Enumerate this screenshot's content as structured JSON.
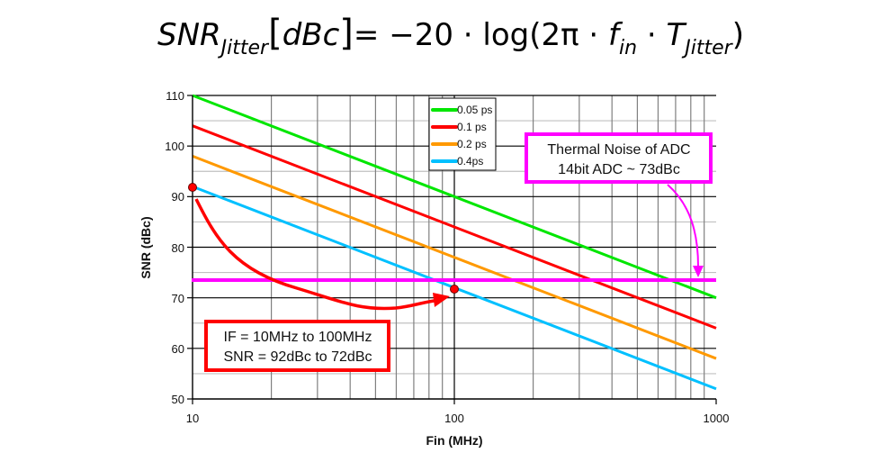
{
  "formula": {
    "lhs_main": "SNR",
    "lhs_sub": "Jitter",
    "lhs_unit": "dBc",
    "rhs_prefix": "= −20 · log(2π · ",
    "f": "f",
    "f_sub": "in",
    "mid": " · ",
    "t": "T",
    "t_sub": "Jitter",
    "rhs_suffix": ")"
  },
  "colors": {
    "green": "#00e600",
    "red": "#ff0000",
    "orange": "#ff9900",
    "blue": "#00c0ff",
    "magenta": "#ff00ff",
    "grid_major": "#000000",
    "grid_minor_h": "#c0c0c0",
    "grid_minor_v": "#808080"
  },
  "chart_data": {
    "type": "line",
    "title": "SNR_Jitter [dBc] = -20·log(2π·f_in·T_Jitter)",
    "xlabel": "Fin (MHz)",
    "ylabel": "SNR (dBc)",
    "xscale": "log",
    "xlim": [
      10,
      1000
    ],
    "ylim": [
      50,
      110
    ],
    "xticks": [
      "10",
      "100",
      "1000"
    ],
    "yticks": [
      "50",
      "60",
      "70",
      "80",
      "90",
      "100",
      "110"
    ],
    "grid": true,
    "legend_position": "top-center",
    "x": [
      10,
      100,
      1000
    ],
    "series": [
      {
        "name": "0.05 ps",
        "color": "#00e600",
        "values": [
          110,
          90,
          70
        ]
      },
      {
        "name": "0.1 ps",
        "color": "#ff0000",
        "values": [
          104,
          84,
          64
        ]
      },
      {
        "name": "0.2 ps",
        "color": "#ff9900",
        "values": [
          98,
          78,
          58
        ]
      },
      {
        "name": "0.4ps",
        "color": "#00c0ff",
        "values": [
          92,
          72,
          52
        ]
      }
    ],
    "reference_line": {
      "label": "Thermal Noise of ADC 14bit ADC ~ 73dBc",
      "y": 73.5,
      "color": "#ff00ff"
    },
    "points": [
      {
        "x": 10,
        "y": 92
      },
      {
        "x": 100,
        "y": 72
      }
    ],
    "annotations": [
      {
        "lines": [
          "Thermal Noise of ADC",
          "14bit ADC ~ 73dBc"
        ],
        "border": "#ff00ff"
      },
      {
        "lines": [
          "IF = 10MHz to 100MHz",
          "SNR = 92dBc to 72dBc"
        ],
        "border": "#ff0000"
      }
    ]
  },
  "legend": [
    {
      "label": "0.05 ps"
    },
    {
      "label": "0.1 ps"
    },
    {
      "label": "0.2 ps"
    },
    {
      "label": "0.4ps"
    }
  ],
  "axes": {
    "x_ticks": [
      "10",
      "100",
      "1000"
    ],
    "y_ticks": [
      "110",
      "100",
      "90",
      "80",
      "70",
      "60",
      "50"
    ],
    "xlabel": "Fin (MHz)",
    "ylabel": "SNR (dBc)"
  },
  "annotation_thermal": {
    "line1": "Thermal Noise of ADC",
    "line2": "14bit ADC ~ 73dBc"
  },
  "annotation_if": {
    "line1": "IF = 10MHz to 100MHz",
    "line2": "SNR = 92dBc to 72dBc"
  }
}
